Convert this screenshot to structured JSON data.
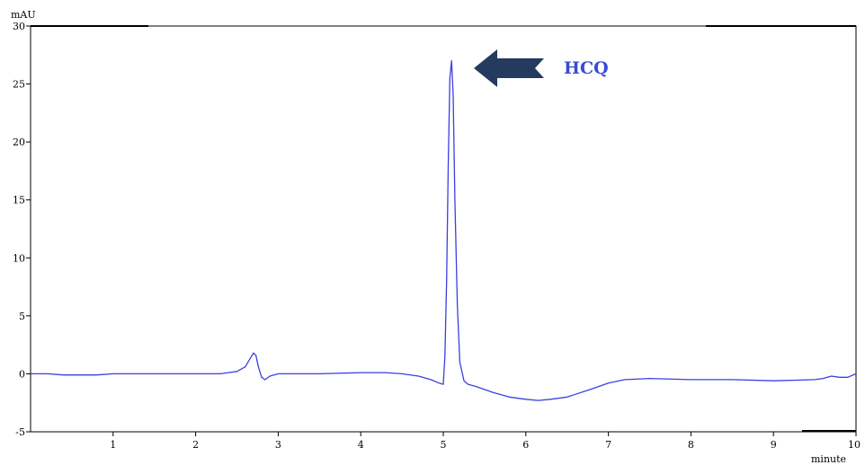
{
  "chart_data": {
    "type": "line",
    "ylabel": "mAU",
    "xlabel": "minute",
    "xlim": [
      0,
      10
    ],
    "ylim": [
      -5,
      30
    ],
    "x_ticks": [
      1,
      2,
      3,
      4,
      5,
      6,
      7,
      8,
      9,
      10
    ],
    "y_ticks": [
      -5,
      0,
      5,
      10,
      15,
      20,
      25,
      30
    ],
    "grid": false,
    "series": [
      {
        "color": "#3b3fe0",
        "x": [
          0,
          0.2,
          0.4,
          0.6,
          0.8,
          1.0,
          1.5,
          2.0,
          2.3,
          2.5,
          2.6,
          2.65,
          2.7,
          2.73,
          2.76,
          2.8,
          2.84,
          2.9,
          3.0,
          3.5,
          4.0,
          4.3,
          4.5,
          4.7,
          4.85,
          4.95,
          5.0,
          5.02,
          5.04,
          5.06,
          5.08,
          5.1,
          5.12,
          5.14,
          5.17,
          5.2,
          5.25,
          5.3,
          5.4,
          5.6,
          5.8,
          6.0,
          6.15,
          6.3,
          6.5,
          6.8,
          7.0,
          7.2,
          7.5,
          8.0,
          8.5,
          9.0,
          9.5,
          9.6,
          9.7,
          9.8,
          9.9,
          10.0
        ],
        "y": [
          0.0,
          0.0,
          -0.1,
          -0.1,
          -0.1,
          0.0,
          0.0,
          0.0,
          0.0,
          0.2,
          0.6,
          1.2,
          1.8,
          1.6,
          0.6,
          -0.3,
          -0.5,
          -0.2,
          0.0,
          0.0,
          0.1,
          0.1,
          0.0,
          -0.2,
          -0.5,
          -0.8,
          -0.9,
          1.5,
          8.0,
          18.0,
          25.5,
          27.0,
          24.0,
          15.0,
          6.0,
          1.0,
          -0.6,
          -0.9,
          -1.1,
          -1.6,
          -2.0,
          -2.2,
          -2.3,
          -2.2,
          -2.0,
          -1.3,
          -0.8,
          -0.5,
          -0.4,
          -0.5,
          -0.5,
          -0.6,
          -0.5,
          -0.4,
          -0.2,
          -0.3,
          -0.3,
          0.0
        ]
      }
    ],
    "annotation": {
      "label": "HCQ",
      "arrow_color": "#243a5e",
      "label_color": "#3a49d6"
    }
  }
}
